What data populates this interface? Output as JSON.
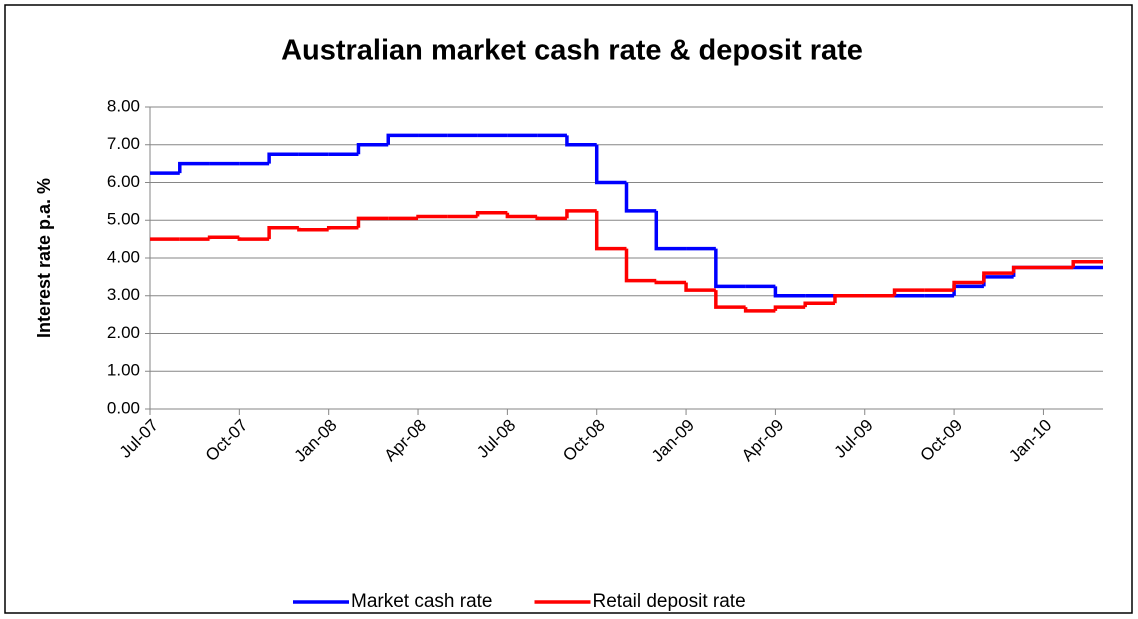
{
  "chart_data": {
    "type": "line",
    "step": true,
    "title": "Australian market cash rate & deposit rate",
    "y_label": "Interest rate p.a. %",
    "categories": [
      "Jul-07",
      null,
      null,
      "Oct-07",
      null,
      null,
      "Jan-08",
      null,
      null,
      "Apr-08",
      null,
      null,
      "Jul-08",
      null,
      null,
      "Oct-08",
      null,
      null,
      "Jan-09",
      null,
      null,
      "Apr-09",
      null,
      null,
      "Jul-09",
      null,
      null,
      "Oct-09",
      null,
      null,
      "Jan-10",
      null
    ],
    "series": [
      {
        "name": "Market cash rate",
        "color": "#0000ff",
        "values": [
          6.25,
          6.5,
          6.5,
          6.5,
          6.75,
          6.75,
          6.75,
          7.0,
          7.25,
          7.25,
          7.25,
          7.25,
          7.25,
          7.25,
          7.0,
          6.0,
          5.25,
          4.25,
          4.25,
          3.25,
          3.25,
          3.0,
          3.0,
          3.0,
          3.0,
          3.0,
          3.0,
          3.25,
          3.5,
          3.75,
          3.75,
          3.75
        ]
      },
      {
        "name": "Retail deposit rate",
        "color": "#ff0000",
        "values": [
          4.5,
          4.5,
          4.55,
          4.5,
          4.8,
          4.75,
          4.8,
          5.05,
          5.05,
          5.1,
          5.1,
          5.2,
          5.1,
          5.05,
          5.25,
          4.25,
          3.4,
          3.35,
          3.15,
          2.7,
          2.6,
          2.7,
          2.8,
          3.0,
          3.0,
          3.15,
          3.15,
          3.35,
          3.6,
          3.75,
          3.75,
          3.9
        ]
      }
    ],
    "ylim": [
      0,
      8
    ],
    "yticks": [
      {
        "value": 0,
        "label": "0.00"
      },
      {
        "value": 1,
        "label": "1.00"
      },
      {
        "value": 2,
        "label": "2.00"
      },
      {
        "value": 3,
        "label": "3.00"
      },
      {
        "value": 4,
        "label": "4.00"
      },
      {
        "value": 5,
        "label": "5.00"
      },
      {
        "value": 6,
        "label": "6.00"
      },
      {
        "value": 7,
        "label": "7.00"
      },
      {
        "value": 8,
        "label": "8.00"
      }
    ],
    "grid": true,
    "legend": "bottom"
  }
}
